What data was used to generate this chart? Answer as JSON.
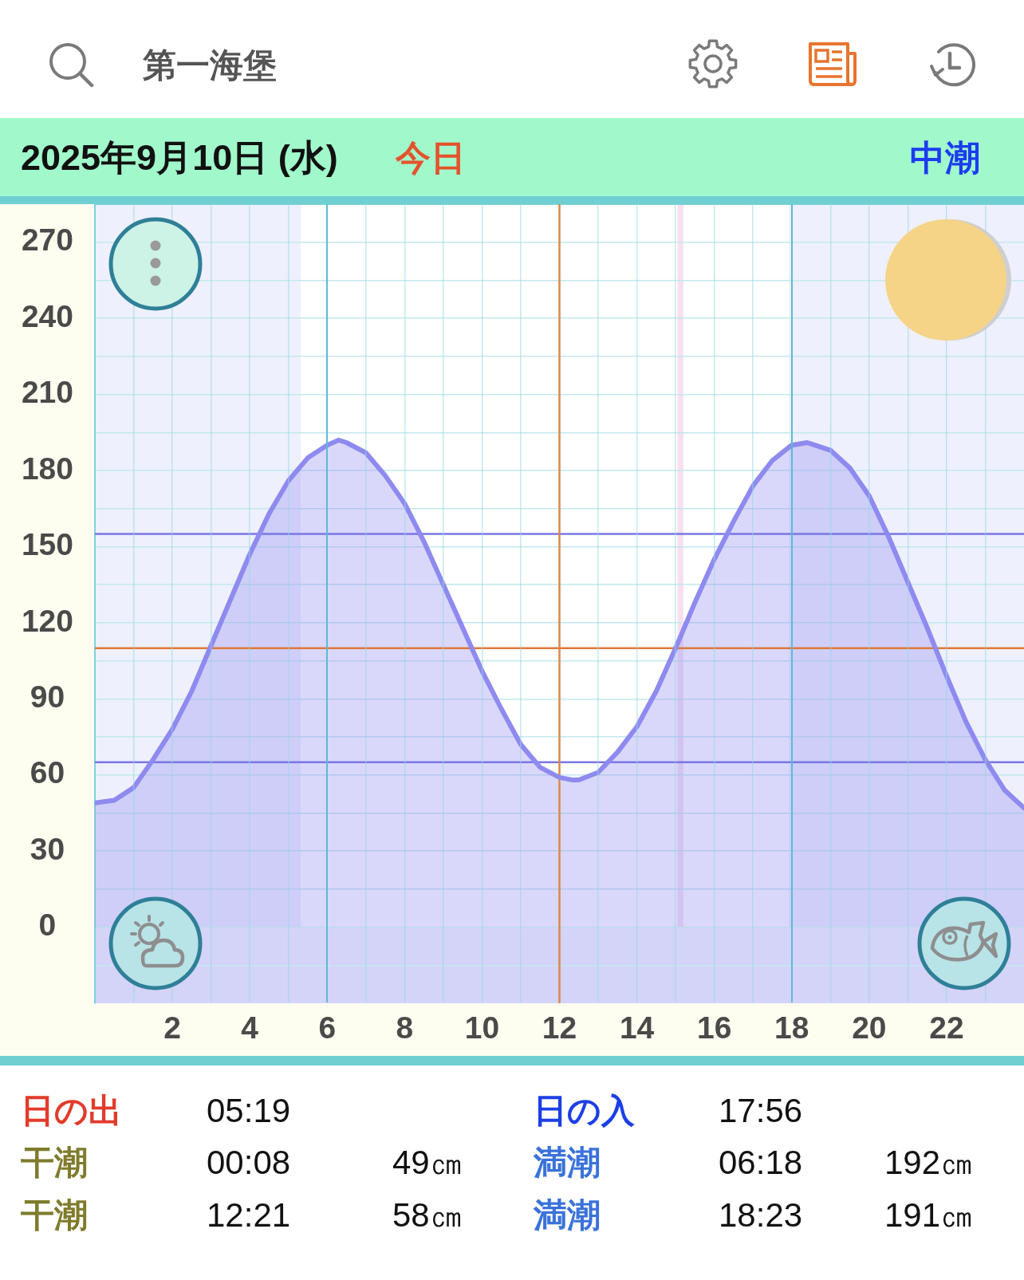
{
  "chart_data": {
    "type": "area",
    "title": "第一海堡",
    "subtitle": "2025年9月10日 (水)",
    "annotations": [
      "今日",
      "中潮",
      "日の出",
      "05:19",
      "日の入",
      "17:56",
      "干潮",
      "00:08",
      "49㎝",
      "満潮",
      "06:18",
      "192㎝",
      "干潮",
      "12:21",
      "58㎝",
      "満潮",
      "18:23",
      "191㎝"
    ],
    "x": [
      0,
      0.5,
      1,
      1.5,
      2,
      2.5,
      3,
      3.5,
      4,
      4.5,
      5,
      5.5,
      6,
      6.3,
      6.5,
      7,
      7.5,
      8,
      8.5,
      9,
      9.5,
      10,
      10.5,
      11,
      11.5,
      12,
      12.35,
      12.5,
      13,
      13.5,
      14,
      14.5,
      15,
      15.5,
      16,
      16.5,
      17,
      17.5,
      18,
      18.4,
      19,
      19.5,
      20,
      20.5,
      21,
      21.5,
      22,
      22.5,
      23,
      23.5,
      24
    ],
    "series": [
      {
        "color": "#8e8aef",
        "values": [
          49,
          50,
          55,
          66,
          78,
          93,
          111,
          129,
          147,
          163,
          176,
          185,
          190,
          192,
          191,
          187,
          178,
          167,
          152,
          135,
          118,
          101,
          86,
          72,
          63,
          59,
          58,
          58,
          61,
          69,
          79,
          93,
          110,
          128,
          145,
          160,
          174,
          184,
          190,
          191,
          188,
          181,
          170,
          154,
          136,
          118,
          99,
          81,
          66,
          54,
          47
        ]
      }
    ],
    "xlim": [
      0,
      24
    ],
    "xticks": [
      {
        "value": 1,
        "label": null
      },
      2,
      {
        "value": 3,
        "label": null
      },
      4,
      {
        "value": 5,
        "label": null
      },
      6,
      {
        "value": 7,
        "label": null
      },
      8,
      {
        "value": 9,
        "label": null
      },
      10,
      {
        "value": 11,
        "label": null
      },
      12,
      {
        "value": 13,
        "label": null
      },
      14,
      {
        "value": 15,
        "label": null
      },
      16,
      {
        "value": 17,
        "label": null
      },
      18,
      {
        "value": 19,
        "label": null
      },
      20,
      {
        "value": 21,
        "label": null
      },
      22,
      {
        "value": 23,
        "label": null
      }
    ],
    "ylim": [
      -30,
      285
    ],
    "yticks": [
      {
        "value": -15,
        "label": null
      },
      0,
      {
        "value": 15,
        "label": null
      },
      30,
      {
        "value": 45,
        "label": null
      },
      60,
      {
        "value": 75,
        "label": null
      },
      90,
      {
        "value": 105,
        "label": null
      },
      120,
      {
        "value": 135,
        "label": null
      },
      150,
      {
        "value": 165,
        "label": null
      },
      180,
      {
        "value": 195,
        "label": null
      },
      210,
      {
        "value": 225,
        "label": null
      },
      240,
      {
        "value": 255,
        "label": null
      },
      270
    ],
    "grid": true,
    "legend": false,
    "bands": [
      {
        "axis": "x",
        "from": 0,
        "to": 5.32,
        "color": "#eef0fd"
      },
      {
        "axis": "x",
        "from": 17.93,
        "to": 24,
        "color": "#eef0fd"
      },
      {
        "axis": "x",
        "from": 15.05,
        "to": 15.2,
        "color": "#f7dff0"
      },
      {
        "axis": "y",
        "from": -30,
        "to": 0,
        "color": "#d4d3f8"
      }
    ],
    "ref_lines": [
      {
        "axis": "y",
        "value": 155,
        "color": "#7a76e6"
      },
      {
        "axis": "y",
        "value": 110,
        "color": "#e0783a"
      },
      {
        "axis": "y",
        "value": 65,
        "color": "#7a76e6"
      },
      {
        "axis": "x",
        "value": 12,
        "color": "#d9894a"
      }
    ]
  }
}
